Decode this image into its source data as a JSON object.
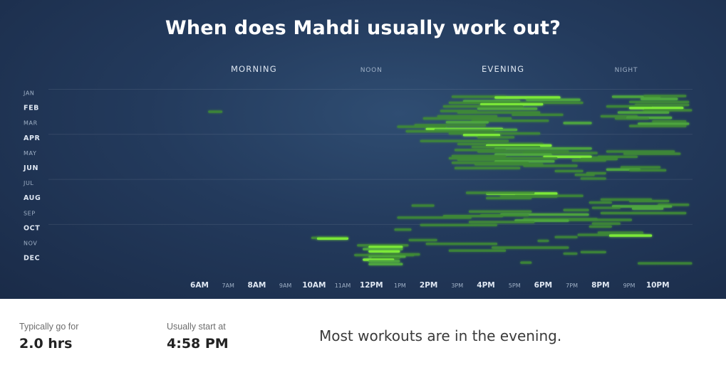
{
  "title": "When does Mahdi usually work out?",
  "colors": {
    "bar_dim": "#3f8a36",
    "bar_mid": "#4ea83e",
    "bar_bright": "#7dea39",
    "text_light": "#dfe7f2",
    "text_dim": "#9fb0c6"
  },
  "chart_data": {
    "type": "timeline",
    "x_domain_hours": [
      5.5,
      23.2
    ],
    "x_ticks": [
      {
        "hour": 6,
        "label": "6AM",
        "major": true
      },
      {
        "hour": 7,
        "label": "7AM",
        "major": false
      },
      {
        "hour": 8,
        "label": "8AM",
        "major": true
      },
      {
        "hour": 9,
        "label": "9AM",
        "major": false
      },
      {
        "hour": 10,
        "label": "10AM",
        "major": true
      },
      {
        "hour": 11,
        "label": "11AM",
        "major": false
      },
      {
        "hour": 12,
        "label": "12PM",
        "major": true
      },
      {
        "hour": 13,
        "label": "1PM",
        "major": false
      },
      {
        "hour": 14,
        "label": "2PM",
        "major": true
      },
      {
        "hour": 15,
        "label": "3PM",
        "major": false
      },
      {
        "hour": 16,
        "label": "4PM",
        "major": true
      },
      {
        "hour": 17,
        "label": "5PM",
        "major": false
      },
      {
        "hour": 18,
        "label": "6PM",
        "major": true
      },
      {
        "hour": 19,
        "label": "7PM",
        "major": false
      },
      {
        "hour": 20,
        "label": "8PM",
        "major": true
      },
      {
        "hour": 21,
        "label": "9PM",
        "major": false
      },
      {
        "hour": 22,
        "label": "10PM",
        "major": true
      }
    ],
    "periods": [
      {
        "label": "MORNING",
        "hour": 7.9,
        "major": true
      },
      {
        "label": "NOON",
        "hour": 12.0,
        "major": false
      },
      {
        "label": "EVENING",
        "hour": 16.6,
        "major": true
      },
      {
        "label": "NIGHT",
        "hour": 20.9,
        "major": false
      }
    ],
    "months": [
      {
        "label": "JAN",
        "major": false
      },
      {
        "label": "FEB",
        "major": true
      },
      {
        "label": "MAR",
        "major": false
      },
      {
        "label": "APR",
        "major": true
      },
      {
        "label": "MAY",
        "major": false
      },
      {
        "label": "JUN",
        "major": true
      },
      {
        "label": "JUL",
        "major": false
      },
      {
        "label": "AUG",
        "major": true
      },
      {
        "label": "SEP",
        "major": false
      },
      {
        "label": "OCT",
        "major": true
      },
      {
        "label": "NOV",
        "major": false
      },
      {
        "label": "DEC",
        "major": true
      }
    ],
    "quarter_gridlines_after_months": [
      0,
      3,
      6,
      9
    ],
    "workouts": [
      [
        1.3,
        6.3,
        6.8,
        0.5
      ],
      [
        0.3,
        14.8,
        16.7,
        0.6
      ],
      [
        0.35,
        16.3,
        18.6,
        0.9
      ],
      [
        0.5,
        17.4,
        19.3,
        0.8
      ],
      [
        0.6,
        15.2,
        17.2,
        0.7
      ],
      [
        0.7,
        14.7,
        19.4,
        0.6
      ],
      [
        0.8,
        15.8,
        18.0,
        0.9
      ],
      [
        0.95,
        14.5,
        17.3,
        0.6
      ],
      [
        1.1,
        15.7,
        17.8,
        0.7
      ],
      [
        1.25,
        14.4,
        15.7,
        0.5
      ],
      [
        1.35,
        15.0,
        17.9,
        0.6
      ],
      [
        1.5,
        16.9,
        18.7,
        0.5
      ],
      [
        1.6,
        14.3,
        16.4,
        0.6
      ],
      [
        1.75,
        13.8,
        16.9,
        0.6
      ],
      [
        1.9,
        15.5,
        18.2,
        0.5
      ],
      [
        2.0,
        14.6,
        16.1,
        0.7
      ],
      [
        2.05,
        18.7,
        19.7,
        0.8
      ],
      [
        2.2,
        13.5,
        16.0,
        0.6
      ],
      [
        2.3,
        12.9,
        14.6,
        0.5
      ],
      [
        2.45,
        13.9,
        16.6,
        1.0
      ],
      [
        2.5,
        14.2,
        17.1,
        0.8
      ],
      [
        2.6,
        13.2,
        16.3,
        0.6
      ],
      [
        2.75,
        14.7,
        17.9,
        0.5
      ],
      [
        2.85,
        15.2,
        16.5,
        0.9
      ],
      [
        3.0,
        15.7,
        17.0,
        0.5
      ],
      [
        3.25,
        13.7,
        16.8,
        0.4
      ],
      [
        0.3,
        20.4,
        22.1,
        0.7
      ],
      [
        0.25,
        21.5,
        23.0,
        0.6
      ],
      [
        0.45,
        21.4,
        22.7,
        0.8
      ],
      [
        0.65,
        21.0,
        23.1,
        0.5
      ],
      [
        0.85,
        21.2,
        23.1,
        0.6
      ],
      [
        0.95,
        20.2,
        21.8,
        0.5
      ],
      [
        1.05,
        21.0,
        22.9,
        0.9
      ],
      [
        1.2,
        21.5,
        23.2,
        0.6
      ],
      [
        1.35,
        20.6,
        22.4,
        0.7
      ],
      [
        1.6,
        20.0,
        21.3,
        0.6
      ],
      [
        1.7,
        20.9,
        22.5,
        0.8
      ],
      [
        1.95,
        21.8,
        23.0,
        0.5
      ],
      [
        2.1,
        21.3,
        23.1,
        0.7
      ],
      [
        2.25,
        21.0,
        23.0,
        0.6
      ],
      [
        1.75,
        20.5,
        21.7,
        0.4
      ],
      [
        3.45,
        15.0,
        18.0,
        0.5
      ],
      [
        3.55,
        16.0,
        18.3,
        0.9
      ],
      [
        3.65,
        15.5,
        17.9,
        0.6
      ],
      [
        3.75,
        16.3,
        19.7,
        0.7
      ],
      [
        3.85,
        14.9,
        16.7,
        0.5
      ],
      [
        3.95,
        15.7,
        18.9,
        0.6
      ],
      [
        4.05,
        17.3,
        19.9,
        0.5
      ],
      [
        4.15,
        16.3,
        18.3,
        0.8
      ],
      [
        4.25,
        14.8,
        16.7,
        0.6
      ],
      [
        4.3,
        18.0,
        19.7,
        0.9
      ],
      [
        4.4,
        14.7,
        18.5,
        0.6
      ],
      [
        4.5,
        15.0,
        16.9,
        0.5
      ],
      [
        4.6,
        16.3,
        18.4,
        0.8
      ],
      [
        4.7,
        14.8,
        17.5,
        0.6
      ],
      [
        4.8,
        15.6,
        18.0,
        0.5
      ],
      [
        4.9,
        17.3,
        19.2,
        0.5
      ],
      [
        5.05,
        14.9,
        17.2,
        0.6
      ],
      [
        4.35,
        19.7,
        20.6,
        0.5
      ],
      [
        4.45,
        19.3,
        20.6,
        0.6
      ],
      [
        4.55,
        19.0,
        20.2,
        0.4
      ],
      [
        3.95,
        20.2,
        22.6,
        0.5
      ],
      [
        4.1,
        20.8,
        22.8,
        0.6
      ],
      [
        4.3,
        19.9,
        21.3,
        0.5
      ],
      [
        5.0,
        20.7,
        22.1,
        0.5
      ],
      [
        5.15,
        20.2,
        21.4,
        0.8
      ],
      [
        5.2,
        21.0,
        22.3,
        0.5
      ],
      [
        5.25,
        18.4,
        19.4,
        0.5
      ],
      [
        5.4,
        19.5,
        20.2,
        0.6
      ],
      [
        5.5,
        19.1,
        19.8,
        0.5
      ],
      [
        5.75,
        19.3,
        20.2,
        0.4
      ],
      [
        6.75,
        16.0,
        18.5,
        0.9
      ],
      [
        6.7,
        15.3,
        17.7,
        0.6
      ],
      [
        6.9,
        17.0,
        19.4,
        0.5
      ],
      [
        6.95,
        16.5,
        18.5,
        0.6
      ],
      [
        7.05,
        16.0,
        17.6,
        0.5
      ],
      [
        7.15,
        20.0,
        21.8,
        0.5
      ],
      [
        7.25,
        21.0,
        22.4,
        0.6
      ],
      [
        7.35,
        19.6,
        20.4,
        0.5
      ],
      [
        7.5,
        22.0,
        23.1,
        0.6
      ],
      [
        7.6,
        20.4,
        22.5,
        0.7
      ],
      [
        7.7,
        19.7,
        20.7,
        0.4
      ],
      [
        7.75,
        21.1,
        22.2,
        0.8
      ],
      [
        7.85,
        18.7,
        19.6,
        0.5
      ],
      [
        7.95,
        15.4,
        17.6,
        0.6
      ],
      [
        8.05,
        20.0,
        23.0,
        0.6
      ],
      [
        8.15,
        16.5,
        19.6,
        0.7
      ],
      [
        8.2,
        15.8,
        17.5,
        0.5
      ],
      [
        8.25,
        14.5,
        16.6,
        0.6
      ],
      [
        8.35,
        12.9,
        15.5,
        0.5
      ],
      [
        8.45,
        17.3,
        19.9,
        0.5
      ],
      [
        8.5,
        18.4,
        21.1,
        0.5
      ],
      [
        8.55,
        17.0,
        18.9,
        0.8
      ],
      [
        8.65,
        15.4,
        17.7,
        0.6
      ],
      [
        8.75,
        19.7,
        20.7,
        0.5
      ],
      [
        8.85,
        13.7,
        16.4,
        0.5
      ],
      [
        7.55,
        13.4,
        14.2,
        0.5
      ],
      [
        8.95,
        19.6,
        20.4,
        0.5
      ],
      [
        9.15,
        12.8,
        13.4,
        0.5
      ],
      [
        9.35,
        19.9,
        21.5,
        0.5
      ],
      [
        9.5,
        19.2,
        20.3,
        0.5
      ],
      [
        9.55,
        20.3,
        21.8,
        0.9
      ],
      [
        9.65,
        18.4,
        19.2,
        0.4
      ],
      [
        9.7,
        9.9,
        11.2,
        0.6
      ],
      [
        9.75,
        10.1,
        11.2,
        0.9
      ],
      [
        9.85,
        13.3,
        14.3,
        0.5
      ],
      [
        9.9,
        17.8,
        18.2,
        0.4
      ],
      [
        10.1,
        13.9,
        16.4,
        0.5
      ],
      [
        10.2,
        11.5,
        13.3,
        0.6
      ],
      [
        10.35,
        16.2,
        18.9,
        0.5
      ],
      [
        10.3,
        11.9,
        13.1,
        0.9
      ],
      [
        10.45,
        11.7,
        13.1,
        0.7
      ],
      [
        10.55,
        14.7,
        16.7,
        0.5
      ],
      [
        10.6,
        11.9,
        13.0,
        0.9
      ],
      [
        10.65,
        19.3,
        20.2,
        0.5
      ],
      [
        10.75,
        18.7,
        19.2,
        0.4
      ],
      [
        10.8,
        12.4,
        13.7,
        0.6
      ],
      [
        10.85,
        11.4,
        13.5,
        0.5
      ],
      [
        10.95,
        11.9,
        13.2,
        0.7
      ],
      [
        11.05,
        12.0,
        13.0,
        0.6
      ],
      [
        11.15,
        11.7,
        12.8,
        0.9
      ],
      [
        11.25,
        11.9,
        13.0,
        0.7
      ],
      [
        11.35,
        17.2,
        17.6,
        0.5
      ],
      [
        11.4,
        21.3,
        23.2,
        0.5
      ],
      [
        11.45,
        11.9,
        13.1,
        0.8
      ]
    ]
  },
  "stats": {
    "duration": {
      "label": "Typically go for",
      "value": "2.0 hrs"
    },
    "start": {
      "label": "Usually start at",
      "value": "4:58 PM"
    },
    "summary": "Most workouts are in the evening."
  }
}
